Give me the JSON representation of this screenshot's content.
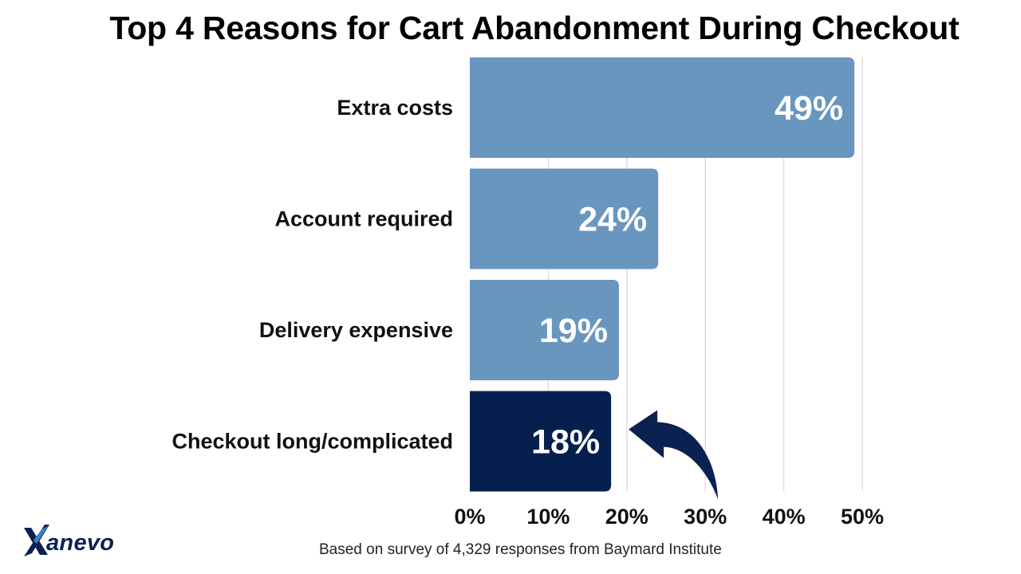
{
  "chart_data": {
    "type": "bar",
    "orientation": "horizontal",
    "title": "Top 4 Reasons for Cart Abandonment During Checkout",
    "categories": [
      "Extra costs",
      "Account required",
      "Delivery expensive",
      "Checkout long/complicated"
    ],
    "values": [
      49,
      24,
      19,
      18
    ],
    "value_labels": [
      "49%",
      "24%",
      "19%",
      "18%"
    ],
    "xlim": [
      0,
      50
    ],
    "ticks": [
      0,
      10,
      20,
      30,
      40,
      50
    ],
    "tick_labels": [
      "0%",
      "10%",
      "20%",
      "30%",
      "40%",
      "50%"
    ],
    "xlabel": "",
    "ylabel": "",
    "grid": true,
    "highlighted_category": "Checkout long/complicated",
    "annotation": "arrow pointing to Checkout long/complicated bar"
  },
  "colors": {
    "bar": "#6896bf",
    "bar_highlight": "#05204f",
    "gridline": "#d9d9d9",
    "arrow": "#0b2152",
    "logo": "#0b2152"
  },
  "logo": {
    "text": "anevo",
    "icon": "x-logo-icon"
  },
  "footnote": "Based on survey of 4,329 responses from Baymard Institute"
}
